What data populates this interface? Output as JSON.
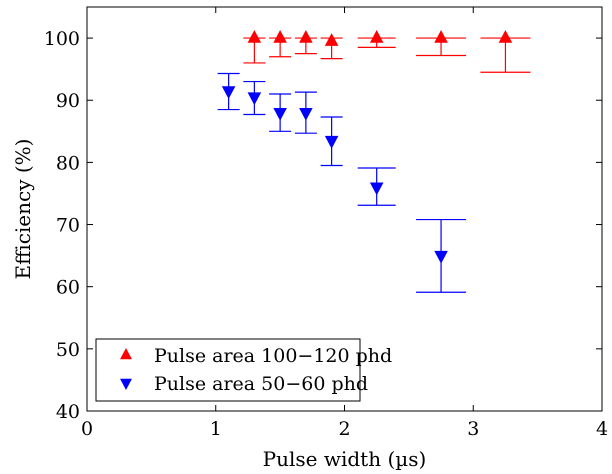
{
  "chart_data": {
    "type": "scatter",
    "xlabel": "Pulse width (µs)",
    "ylabel": "Efficiency (%)",
    "xlim": [
      0,
      4
    ],
    "ylim": [
      40,
      105
    ],
    "xticks": [
      "0",
      "1",
      "2",
      "3",
      "4"
    ],
    "yticks": [
      "40",
      "50",
      "60",
      "70",
      "80",
      "90",
      "100"
    ],
    "grid": false,
    "legend_position": "bottom-left",
    "series": [
      {
        "name": "Pulse area 100−120 phd",
        "color": "#ff0000",
        "marker": "triangle-up",
        "points": [
          {
            "x": 1.3,
            "y": 100.0,
            "err_low": 4.0,
            "err_high": 0.0
          },
          {
            "x": 1.5,
            "y": 100.0,
            "err_low": 3.0,
            "err_high": 0.0
          },
          {
            "x": 1.7,
            "y": 100.0,
            "err_low": 2.5,
            "err_high": 0.0
          },
          {
            "x": 1.9,
            "y": 99.5,
            "err_low": 2.8,
            "err_high": 0.5
          },
          {
            "x": 2.25,
            "y": 100.0,
            "err_low": 1.5,
            "err_high": 0.0
          },
          {
            "x": 2.75,
            "y": 100.0,
            "err_low": 2.8,
            "err_high": 0.0
          },
          {
            "x": 3.25,
            "y": 100.0,
            "err_low": 5.5,
            "err_high": 0.0
          }
        ]
      },
      {
        "name": "Pulse area 50−60 phd",
        "color": "#0000ff",
        "marker": "triangle-down",
        "points": [
          {
            "x": 1.1,
            "y": 91.5,
            "err_low": 3.0,
            "err_high": 2.8
          },
          {
            "x": 1.3,
            "y": 90.5,
            "err_low": 2.8,
            "err_high": 2.5
          },
          {
            "x": 1.5,
            "y": 88.0,
            "err_low": 3.0,
            "err_high": 3.0
          },
          {
            "x": 1.7,
            "y": 88.0,
            "err_low": 3.3,
            "err_high": 3.3
          },
          {
            "x": 1.9,
            "y": 83.5,
            "err_low": 4.0,
            "err_high": 3.8
          },
          {
            "x": 2.25,
            "y": 76.0,
            "err_low": 2.9,
            "err_high": 3.1
          },
          {
            "x": 2.75,
            "y": 65.0,
            "err_low": 5.9,
            "err_high": 5.8
          }
        ]
      }
    ]
  }
}
